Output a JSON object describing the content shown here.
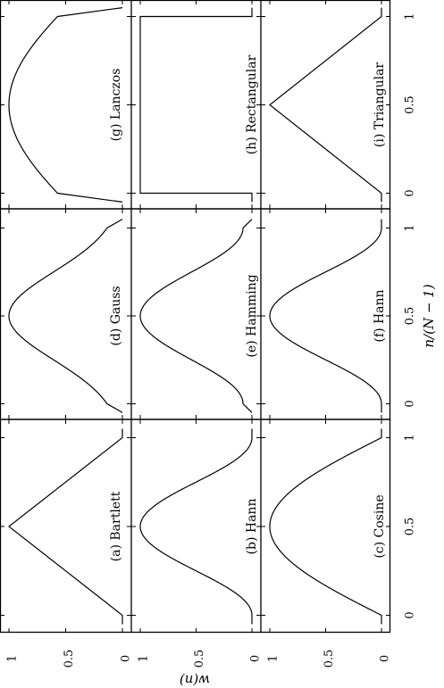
{
  "figure": {
    "rotation": "rotated 90 degrees counter-clockwise",
    "xlabel": "n/(N − 1)",
    "ylabel": "w(n)"
  },
  "chart_data": [
    {
      "type": "line",
      "label": "(a) Bartlett",
      "window": "bartlett",
      "xlim": [
        0,
        1
      ],
      "ylim": [
        0,
        1
      ],
      "xticks": [
        "0",
        "0.5",
        "1"
      ],
      "yticks": [
        "0",
        "0.5",
        "1"
      ],
      "grid": false,
      "x": [
        0,
        0.5,
        1
      ],
      "y": [
        0,
        1,
        0
      ]
    },
    {
      "type": "line",
      "label": "(b) Hann",
      "window": "hann",
      "xlim": [
        0,
        1
      ],
      "ylim": [
        0,
        1
      ],
      "xticks": [
        "0",
        "0.5",
        "1"
      ],
      "yticks": [
        "0",
        "0.5",
        "1"
      ],
      "grid": false,
      "x": [
        0,
        0.1,
        0.2,
        0.3,
        0.4,
        0.5,
        0.6,
        0.7,
        0.8,
        0.9,
        1
      ],
      "y": [
        0,
        0.1,
        0.35,
        0.65,
        0.9,
        1,
        0.9,
        0.65,
        0.35,
        0.1,
        0
      ]
    },
    {
      "type": "line",
      "label": "(c) Cosine",
      "window": "cosine",
      "xlim": [
        0,
        1
      ],
      "ylim": [
        0,
        1
      ],
      "xticks": [
        "0",
        "0.5",
        "1"
      ],
      "yticks": [
        "0",
        "0.5",
        "1"
      ],
      "grid": false,
      "x": [
        0,
        0.1,
        0.2,
        0.3,
        0.4,
        0.5,
        0.6,
        0.7,
        0.8,
        0.9,
        1
      ],
      "y": [
        0,
        0.31,
        0.59,
        0.81,
        0.95,
        1,
        0.95,
        0.81,
        0.59,
        0.31,
        0
      ]
    },
    {
      "type": "line",
      "label": "(d) Gauss",
      "window": "gauss",
      "xlim": [
        0,
        1
      ],
      "ylim": [
        0,
        1
      ],
      "xticks": [
        "0",
        "0.5",
        "1"
      ],
      "yticks": [
        "0",
        "0.5",
        "1"
      ],
      "grid": false,
      "x": [
        0,
        0.1,
        0.2,
        0.3,
        0.4,
        0.5,
        0.6,
        0.7,
        0.8,
        0.9,
        1
      ],
      "y": [
        0.14,
        0.29,
        0.5,
        0.73,
        0.92,
        1,
        0.92,
        0.73,
        0.5,
        0.29,
        0.14
      ]
    },
    {
      "type": "line",
      "label": "(e) Hamming",
      "window": "hamming",
      "xlim": [
        0,
        1
      ],
      "ylim": [
        0,
        1
      ],
      "xticks": [
        "0",
        "0.5",
        "1"
      ],
      "yticks": [
        "0",
        "0.5",
        "1"
      ],
      "grid": false,
      "x": [
        0,
        0.1,
        0.2,
        0.3,
        0.4,
        0.5,
        0.6,
        0.7,
        0.8,
        0.9,
        1
      ],
      "y": [
        0.08,
        0.17,
        0.4,
        0.68,
        0.91,
        1,
        0.91,
        0.68,
        0.4,
        0.17,
        0.08
      ]
    },
    {
      "type": "line",
      "label": "(f) Hann",
      "window": "hann",
      "xlim": [
        0,
        1
      ],
      "ylim": [
        0,
        1
      ],
      "xticks": [
        "0",
        "0.5",
        "1"
      ],
      "yticks": [
        "0",
        "0.5",
        "1"
      ],
      "grid": false,
      "x": [
        0,
        0.1,
        0.2,
        0.3,
        0.4,
        0.5,
        0.6,
        0.7,
        0.8,
        0.9,
        1
      ],
      "y": [
        0,
        0.1,
        0.35,
        0.65,
        0.9,
        1,
        0.9,
        0.65,
        0.35,
        0.1,
        0
      ]
    },
    {
      "type": "line",
      "label": "(g) Lanczos",
      "window": "lanczos",
      "xlim": [
        0,
        1
      ],
      "ylim": [
        0,
        1
      ],
      "xticks": [
        "0",
        "0.5",
        "1"
      ],
      "yticks": [
        "0",
        "0.5",
        "1"
      ],
      "grid": false,
      "x": [
        0,
        0,
        0.1,
        0.2,
        0.3,
        0.4,
        0.5,
        0.6,
        0.7,
        0.8,
        0.9,
        1,
        1
      ],
      "y": [
        0,
        0.83,
        0.89,
        0.94,
        0.97,
        0.99,
        1,
        0.99,
        0.97,
        0.94,
        0.89,
        0.83,
        0
      ]
    },
    {
      "type": "line",
      "label": "(h) Rectangular",
      "window": "rectangular",
      "xlim": [
        0,
        1
      ],
      "ylim": [
        0,
        1
      ],
      "xticks": [
        "0",
        "0.5",
        "1"
      ],
      "yticks": [
        "0",
        "0.5",
        "1"
      ],
      "grid": false,
      "x": [
        0,
        0,
        1,
        1
      ],
      "y": [
        0,
        1,
        1,
        0
      ]
    },
    {
      "type": "line",
      "label": "(i) Triangular",
      "window": "triangular",
      "xlim": [
        0,
        1
      ],
      "ylim": [
        0,
        1
      ],
      "xticks": [
        "0",
        "0.5",
        "1"
      ],
      "yticks": [
        "0",
        "0.5",
        "1"
      ],
      "grid": false,
      "x": [
        0,
        0.5,
        1
      ],
      "y": [
        0,
        1,
        0
      ]
    }
  ]
}
